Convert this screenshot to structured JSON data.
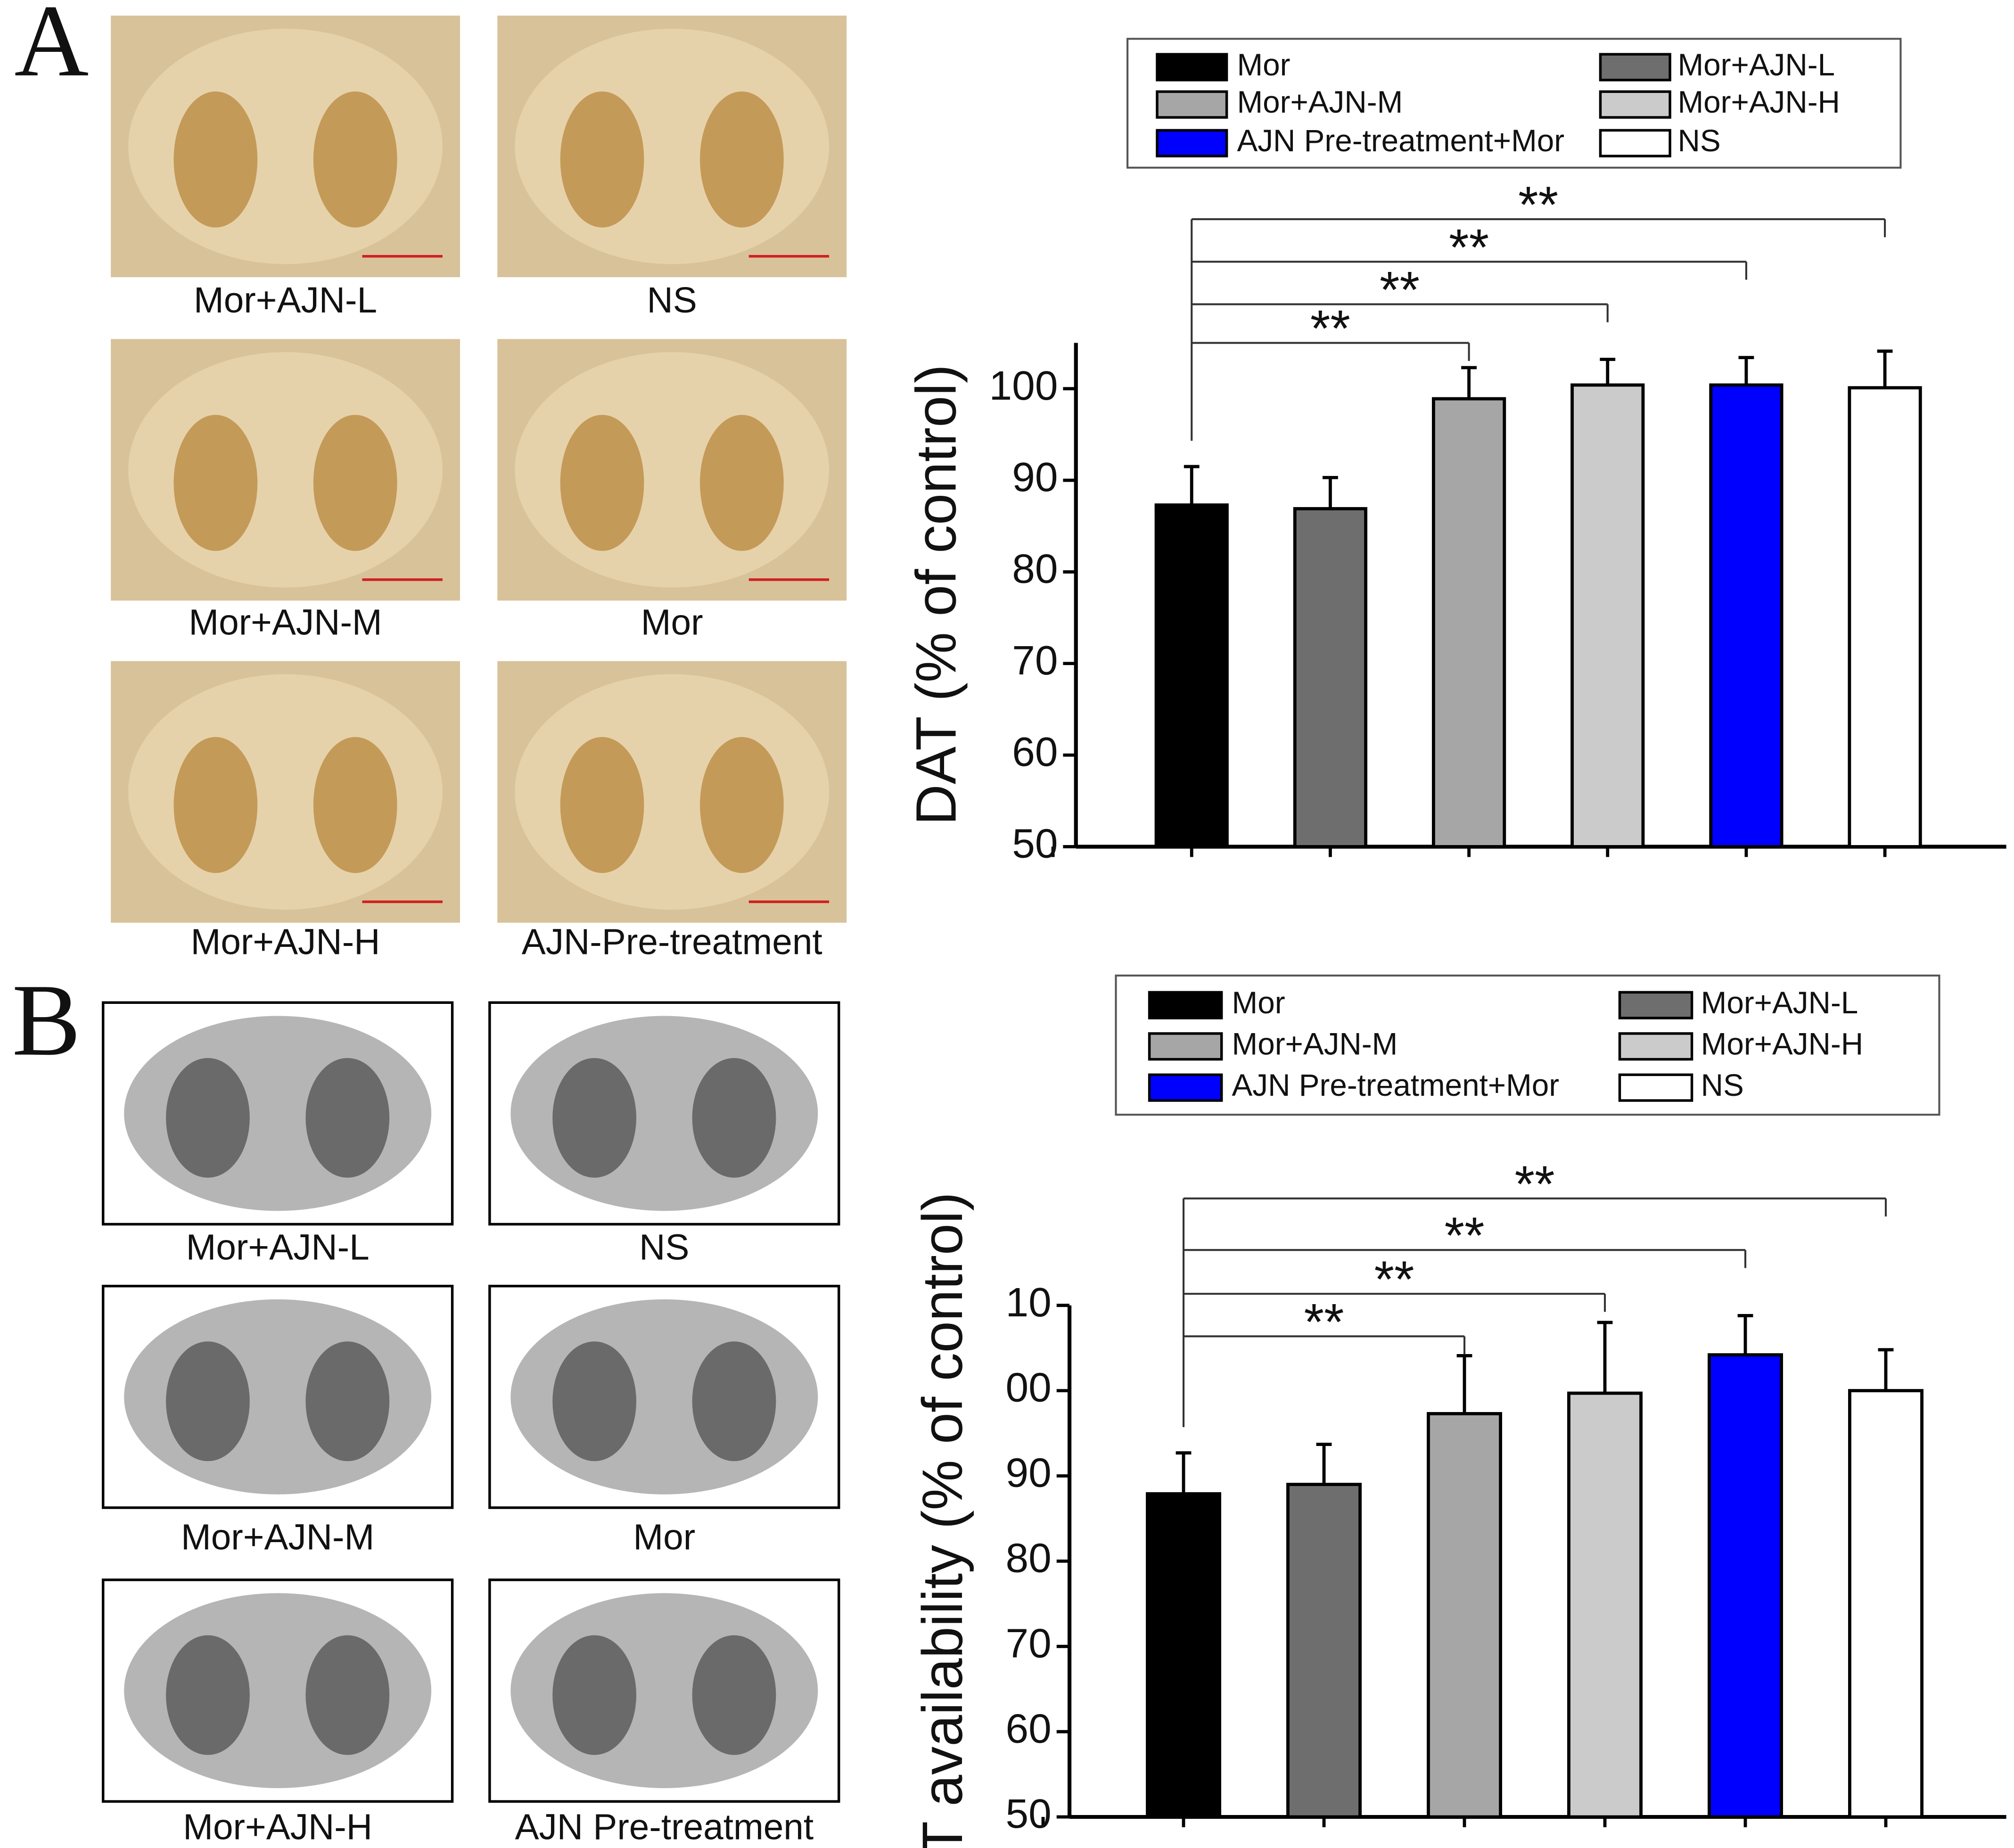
{
  "panels": [
    {
      "label": "A",
      "captions": [
        "Mor+AJN-L",
        "NS",
        "Mor+AJN-M",
        "Mor",
        "Mor+AJN-H",
        "AJN-Pre-treatment"
      ]
    },
    {
      "label": "B",
      "captions": [
        "Mor+AJN-L",
        "NS",
        "Mor+AJN-M",
        "Mor",
        "Mor+AJN-H",
        "AJN Pre-treatment"
      ]
    }
  ],
  "chart_data": [
    {
      "type": "bar",
      "y_label": "DAT (% of control)",
      "categories": [
        "Mor",
        "Mor+AJN-L",
        "Mor+AJN-M",
        "Mor+AJN-H",
        "AJN Pre-treatment+Mor",
        "NS"
      ],
      "colors": [
        "#000000",
        "#6e6e6e",
        "#a6a6a6",
        "#cbcbcb",
        "#0000ff",
        "#ffffff"
      ],
      "values": [
        87.3,
        86.9,
        98.9,
        100.4,
        100.4,
        100.1
      ],
      "errors": [
        4.2,
        3.4,
        3.4,
        2.8,
        3.0,
        4.0
      ],
      "ylim": [
        50,
        105
      ],
      "yticks": [
        50,
        60,
        70,
        80,
        90,
        100
      ],
      "comparisons": [
        {
          "categories": [
            0,
            2
          ],
          "label": "**"
        },
        {
          "categories": [
            0,
            3
          ],
          "label": "**"
        },
        {
          "categories": [
            0,
            4
          ],
          "label": "**"
        },
        {
          "categories": [
            0,
            5
          ],
          "label": "**"
        }
      ]
    },
    {
      "type": "bar",
      "y_label": "DAT availability (% of control)",
      "categories": [
        "Mor",
        "Mor+AJN-L",
        "Mor+AJN-M",
        "Mor+AJN-H",
        "AJN Pre-treatment+Mor",
        "NS"
      ],
      "colors": [
        "#000000",
        "#6e6e6e",
        "#a6a6a6",
        "#cbcbcb",
        "#0000ff",
        "#ffffff"
      ],
      "values": [
        87.9,
        89.0,
        97.3,
        99.7,
        104.2,
        100.0
      ],
      "errors": [
        4.8,
        4.7,
        6.8,
        8.3,
        4.6,
        4.8
      ],
      "ylim": [
        50,
        110
      ],
      "yticks": [
        {
          "value": 110,
          "label": "10"
        },
        {
          "value": 100,
          "label": "00"
        },
        90,
        80,
        70,
        60,
        50
      ],
      "comparisons": [
        {
          "categories": [
            0,
            2
          ],
          "label": "**"
        },
        {
          "categories": [
            0,
            3
          ],
          "label": "**"
        },
        {
          "categories": [
            0,
            4
          ],
          "label": "**"
        },
        {
          "categories": [
            0,
            5
          ],
          "label": "**"
        }
      ]
    }
  ]
}
